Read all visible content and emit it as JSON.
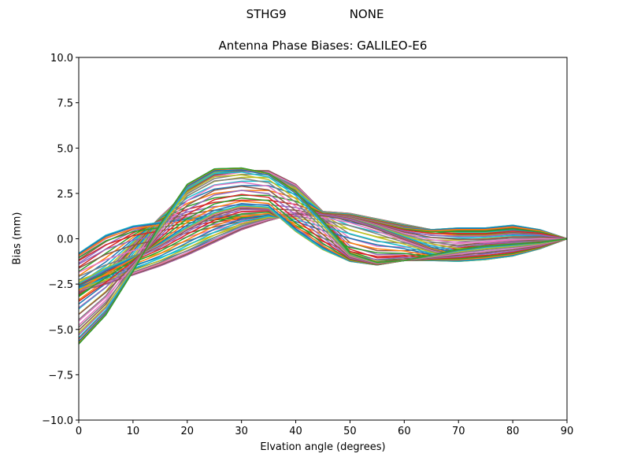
{
  "figure": {
    "suptitle_left": "STHG9",
    "suptitle_right": "NONE",
    "title": "Antenna Phase Biases: GALILEO-E6",
    "xlabel": "Elvation angle (degrees)",
    "ylabel": "Bias (mm)"
  },
  "colors": [
    "#1f77b4",
    "#ff7f0e",
    "#2ca02c",
    "#d62728",
    "#9467bd",
    "#8c564b",
    "#e377c2",
    "#7f7f7f",
    "#bcbd22",
    "#17becf"
  ],
  "chart_data": {
    "type": "line",
    "title": "Antenna Phase Biases: GALILEO-E6",
    "suptitle": "STHG9          NONE",
    "xlabel": "Elvation angle (degrees)",
    "ylabel": "Bias (mm)",
    "xlim": [
      0,
      90
    ],
    "ylim": [
      -10,
      10
    ],
    "xticks": [
      0,
      10,
      20,
      30,
      40,
      50,
      60,
      70,
      80,
      90
    ],
    "yticks": [
      -10.0,
      -7.5,
      -5.0,
      -2.5,
      0.0,
      2.5,
      5.0,
      7.5,
      10.0
    ],
    "ytick_labels": [
      "−10.0",
      "−7.5",
      "−5.0",
      "−2.5",
      "0.0",
      "2.5",
      "5.0",
      "7.5",
      "10.0"
    ],
    "grid": false,
    "legend": "none",
    "x": [
      0,
      5,
      10,
      15,
      20,
      25,
      30,
      35,
      40,
      45,
      50,
      55,
      60,
      65,
      70,
      75,
      80,
      85,
      90
    ],
    "series_description": "73 curves (one per azimuth 0-360 deg step 5), default matplotlib color cycle",
    "envelope": {
      "max": [
        -0.8,
        0.2,
        0.7,
        2.0,
        3.2,
        3.85,
        3.9,
        3.75,
        3.0,
        1.5,
        1.4,
        1.2,
        0.9,
        0.7,
        0.6,
        0.6,
        0.75,
        0.5,
        0.0
      ],
      "min": [
        -5.8,
        -4.2,
        -2.1,
        -1.6,
        -0.9,
        -0.2,
        0.5,
        1.0,
        0.3,
        -0.6,
        -1.25,
        -1.45,
        -1.2,
        -1.2,
        -1.25,
        -1.15,
        -0.95,
        -0.55,
        0.0
      ]
    },
    "profiles": {
      "high_hump": [
        -5.8,
        -4.2,
        -1.8,
        0.8,
        3.0,
        3.85,
        3.9,
        3.6,
        2.6,
        1.0,
        -0.8,
        -1.3,
        -1.2,
        -0.9,
        -0.6,
        -0.4,
        -0.3,
        -0.2,
        0.0
      ],
      "late_hump": [
        -3.0,
        -2.0,
        -0.4,
        1.2,
        2.6,
        3.5,
        3.75,
        3.75,
        3.0,
        1.5,
        1.4,
        1.1,
        0.8,
        0.5,
        0.3,
        0.3,
        0.4,
        0.3,
        0.0
      ],
      "flat_early": [
        -0.8,
        0.2,
        0.7,
        0.9,
        1.1,
        1.2,
        1.25,
        1.25,
        1.3,
        1.3,
        1.2,
        0.9,
        0.6,
        0.5,
        0.6,
        0.6,
        0.75,
        0.5,
        0.0
      ],
      "low_dip": [
        -2.4,
        -1.6,
        -1.0,
        -0.3,
        0.6,
        1.4,
        1.8,
        1.7,
        0.4,
        -0.6,
        -1.25,
        -1.45,
        -1.2,
        -1.2,
        -1.25,
        -1.15,
        -0.95,
        -0.55,
        0.0
      ],
      "low_rise": [
        -2.9,
        -2.5,
        -2.0,
        -1.5,
        -0.9,
        -0.2,
        0.5,
        1.0,
        1.4,
        1.35,
        1.1,
        0.6,
        0.0,
        -0.6,
        -1.0,
        -1.0,
        -0.9,
        -0.5,
        0.0
      ]
    }
  }
}
